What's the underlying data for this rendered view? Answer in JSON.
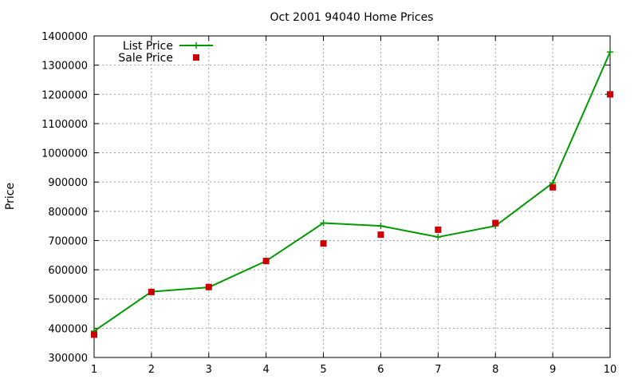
{
  "chart_data": {
    "type": "line",
    "title": "Oct 2001 94040 Home Prices",
    "xlabel": "",
    "ylabel": "Price",
    "x": [
      1,
      2,
      3,
      4,
      5,
      6,
      7,
      8,
      9,
      10
    ],
    "xlim": [
      1,
      10
    ],
    "ylim": [
      300000,
      1400000
    ],
    "xticks": [
      "1",
      "2",
      "3",
      "4",
      "5",
      "6",
      "7",
      "8",
      "9",
      "10"
    ],
    "yticks": [
      "300000",
      "400000",
      "500000",
      "600000",
      "700000",
      "800000",
      "900000",
      "1000000",
      "1100000",
      "1200000",
      "1300000",
      "1400000"
    ],
    "grid": true,
    "legend_position": "top-left",
    "series": [
      {
        "name": "List Price",
        "style": "linespoints",
        "marker": "plus",
        "color": "#009900",
        "values": [
          390000,
          525000,
          540000,
          630000,
          760000,
          750000,
          712000,
          750000,
          897000,
          1345000
        ]
      },
      {
        "name": "Sale Price",
        "style": "points",
        "marker": "square",
        "color": "#cc0000",
        "values": [
          378000,
          524000,
          541000,
          630000,
          690000,
          720000,
          737000,
          760000,
          882000,
          1200000
        ]
      }
    ]
  }
}
